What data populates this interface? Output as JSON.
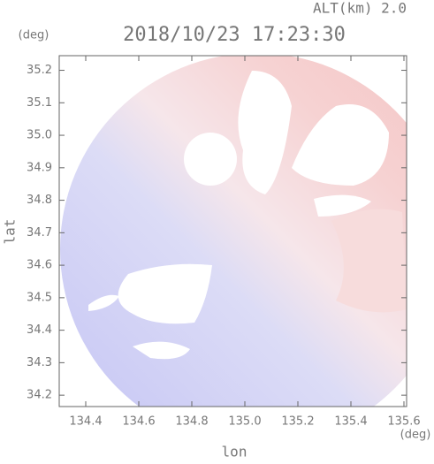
{
  "chart_data": {
    "type": "radar-map",
    "altitude_label": "ALT(km) 2.0",
    "title": "2018/10/23 17:23:30",
    "y_unit": "(deg)",
    "x_unit": "(deg)",
    "ylabel": "lat",
    "xlabel": "lon",
    "xlim": [
      134.3,
      135.61
    ],
    "ylim": [
      34.165,
      35.245
    ],
    "xticks": [
      134.4,
      134.6,
      134.8,
      {
        "value": 135.0,
        "label": "135.0"
      },
      135.2,
      135.4,
      135.6
    ],
    "yticks": [
      34.2,
      34.3,
      34.4,
      34.5,
      34.6,
      34.7,
      34.8,
      34.9,
      {
        "value": 35.0,
        "label": "35.0"
      },
      35.1,
      35.2
    ]
  }
}
